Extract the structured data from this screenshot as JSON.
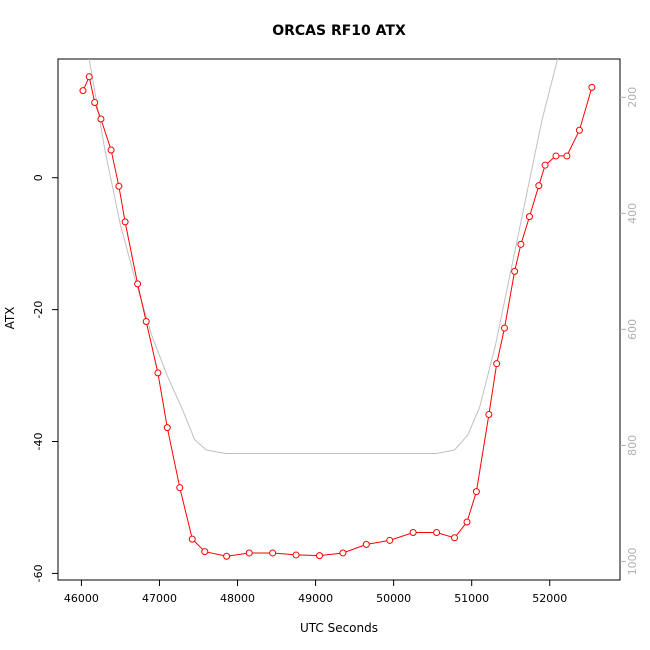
{
  "chart_data": {
    "type": "line",
    "title": "ORCAS RF10 ATX",
    "xlabel": "UTC Seconds",
    "ylabel": "ATX",
    "xlim": [
      45700,
      52900
    ],
    "ylim": [
      -61,
      18
    ],
    "xticks": [
      46000,
      47000,
      48000,
      49000,
      50000,
      51000,
      52000
    ],
    "yticks": [
      -60,
      -40,
      -20,
      0
    ],
    "y2lim": [
      1032,
      134
    ],
    "y2ticks": [
      200,
      400,
      600,
      800,
      1000
    ],
    "grid": false,
    "legend": "none",
    "series": [
      {
        "color": "#ff0000",
        "marker": "open-circle",
        "axis": "left",
        "x": [
          46020,
          46100,
          46170,
          46250,
          46380,
          46480,
          46560,
          46720,
          46830,
          46980,
          47100,
          47260,
          47420,
          47580,
          47860,
          48150,
          48450,
          48750,
          49050,
          49350,
          49650,
          49950,
          50250,
          50550,
          50780,
          50940,
          51060,
          51220,
          51320,
          51420,
          51550,
          51630,
          51740,
          51860,
          51940,
          52080,
          52220,
          52380,
          52540
        ],
        "y": [
          13.2,
          15.3,
          11.4,
          8.9,
          4.2,
          -1.3,
          -6.7,
          -16.1,
          -21.8,
          -29.6,
          -37.9,
          -47.0,
          -54.8,
          -56.7,
          -57.4,
          -56.9,
          -56.9,
          -57.2,
          -57.3,
          -56.9,
          -55.6,
          -55.0,
          -53.8,
          -53.8,
          -54.6,
          -52.2,
          -47.6,
          -35.9,
          -28.2,
          -22.8,
          -14.2,
          -10.1,
          -5.9,
          -1.2,
          1.9,
          3.3,
          3.3,
          7.2,
          13.7
        ]
      },
      {
        "color": "#c0c0c0",
        "marker": "none",
        "axis": "right",
        "x": [
          46100,
          46300,
          46500,
          46700,
          46900,
          47100,
          47300,
          47450,
          47600,
          47850,
          48500,
          49500,
          50550,
          50780,
          50950,
          51100,
          51300,
          51500,
          51700,
          51900,
          52100
        ],
        "y": [
          134,
          290,
          420,
          520,
          610,
          680,
          740,
          790,
          808,
          814,
          814,
          814,
          814,
          808,
          782,
          735,
          630,
          500,
          370,
          240,
          134
        ]
      }
    ]
  }
}
